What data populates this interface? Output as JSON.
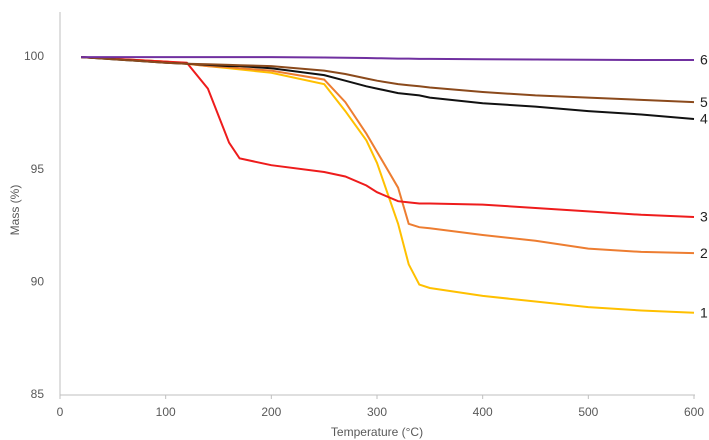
{
  "chart_data": {
    "type": "line",
    "xlabel": "Temperature (°C)",
    "ylabel": "Mass (%)",
    "x": [
      20,
      100,
      120,
      140,
      160,
      170,
      200,
      250,
      270,
      290,
      300,
      320,
      330,
      340,
      350,
      400,
      450,
      500,
      550,
      600
    ],
    "series": [
      {
        "name": "1",
        "color": "#ffc000",
        "values": [
          100,
          99.8,
          99.7,
          99.6,
          99.5,
          99.45,
          99.3,
          98.8,
          97.6,
          96.3,
          95.3,
          92.6,
          90.8,
          89.9,
          89.75,
          89.4,
          89.15,
          88.9,
          88.75,
          88.65
        ]
      },
      {
        "name": "2",
        "color": "#ed7d31",
        "values": [
          100,
          99.8,
          99.7,
          99.6,
          99.55,
          99.5,
          99.4,
          99.0,
          98.0,
          96.6,
          95.8,
          94.2,
          92.6,
          92.45,
          92.4,
          92.1,
          91.85,
          91.5,
          91.35,
          91.3
        ]
      },
      {
        "name": "3",
        "color": "#ee1c1c",
        "values": [
          100,
          99.8,
          99.75,
          98.6,
          96.2,
          95.5,
          95.2,
          94.9,
          94.7,
          94.3,
          94.0,
          93.6,
          93.55,
          93.5,
          93.5,
          93.45,
          93.3,
          93.15,
          93.0,
          92.9
        ]
      },
      {
        "name": "4",
        "color": "#111111",
        "values": [
          100,
          99.75,
          99.7,
          99.65,
          99.6,
          99.6,
          99.5,
          99.2,
          98.95,
          98.7,
          98.6,
          98.4,
          98.35,
          98.3,
          98.2,
          97.95,
          97.8,
          97.6,
          97.45,
          97.25
        ]
      },
      {
        "name": "5",
        "color": "#8b4a1c",
        "values": [
          100,
          99.75,
          99.7,
          99.68,
          99.65,
          99.64,
          99.6,
          99.4,
          99.25,
          99.05,
          98.95,
          98.8,
          98.75,
          98.7,
          98.65,
          98.45,
          98.3,
          98.2,
          98.1,
          98.0
        ]
      },
      {
        "name": "6",
        "color": "#7030a0",
        "values": [
          100,
          100,
          100,
          100,
          100,
          100,
          100,
          99.98,
          99.97,
          99.96,
          99.95,
          99.93,
          99.93,
          99.92,
          99.92,
          99.9,
          99.89,
          99.88,
          99.87,
          99.87
        ]
      }
    ],
    "xlim": [
      0,
      600
    ],
    "xticks": [
      0,
      100,
      200,
      300,
      400,
      500,
      600
    ],
    "ylim": [
      85,
      102
    ],
    "yticks": [
      85,
      90,
      95,
      100
    ],
    "grid": false
  }
}
